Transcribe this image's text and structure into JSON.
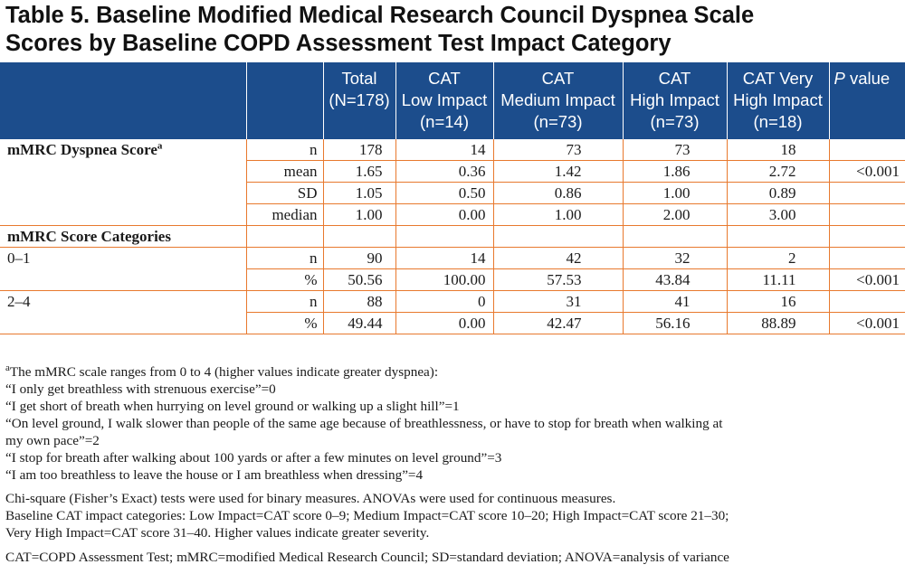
{
  "title": {
    "line1": "Table 5. Baseline Modified Medical Research Council Dyspnea Scale",
    "line2": "Scores by Baseline COPD Assessment Test Impact Category"
  },
  "header": {
    "columns": [
      {
        "l1": "Total",
        "l2": "(N=178)",
        "l3": ""
      },
      {
        "l1": "CAT",
        "l2": "Low Impact",
        "l3": "(n=14)"
      },
      {
        "l1": "CAT",
        "l2": "Medium Impact",
        "l3": "(n=73)"
      },
      {
        "l1": "CAT",
        "l2": "High Impact",
        "l3": "(n=73)"
      },
      {
        "l1": "CAT Very",
        "l2": "High Impact",
        "l3": "(n=18)"
      }
    ],
    "pvalue_italic": "P",
    "pvalue_rest": " value"
  },
  "sections": {
    "dyspnea": {
      "label": "mMRC Dyspnea Score",
      "sup": "a"
    },
    "categories": {
      "label": "mMRC Score Categories"
    }
  },
  "rows": {
    "d_n": {
      "stat": "n",
      "v": [
        "178",
        "14",
        "73",
        "73",
        "18"
      ],
      "p": ""
    },
    "d_mean": {
      "stat": "mean",
      "v": [
        "1.65",
        "0.36",
        "1.42",
        "1.86",
        "2.72"
      ],
      "p": "<0.001"
    },
    "d_sd": {
      "stat": "SD",
      "v": [
        "1.05",
        "0.50",
        "0.86",
        "1.00",
        "0.89"
      ],
      "p": ""
    },
    "d_median": {
      "stat": "median",
      "v": [
        "1.00",
        "0.00",
        "1.00",
        "2.00",
        "3.00"
      ],
      "p": ""
    },
    "g1_label": "0–1",
    "g1_n": {
      "stat": "n",
      "v": [
        "90",
        "14",
        "42",
        "32",
        "2"
      ],
      "p": ""
    },
    "g1_pct": {
      "stat": "%",
      "v": [
        "50.56",
        "100.00",
        "57.53",
        "43.84",
        "11.11"
      ],
      "p": "<0.001"
    },
    "g2_label": "2–4",
    "g2_n": {
      "stat": "n",
      "v": [
        "88",
        "0",
        "31",
        "41",
        "16"
      ],
      "p": ""
    },
    "g2_pct": {
      "stat": "%",
      "v": [
        "49.44",
        "0.00",
        "42.47",
        "56.16",
        "88.89"
      ],
      "p": "<0.001"
    }
  },
  "footnotes": {
    "a_sup": "a",
    "a_intro": "The mMRC scale ranges from 0 to 4 (higher values indicate greater dyspnea):",
    "lines": [
      "“I only get breathless with strenuous exercise”=0",
      "“I get short of breath when hurrying on level ground or walking up a slight hill”=1",
      "“On level ground, I walk slower than people of the same age because of breathlessness, or have to stop for breath when walking at",
      "my own pace”=2",
      "“I stop for breath after walking about 100 yards or after a few minutes on level ground”=3",
      "“I am too breathless to leave the house or I am breathless when dressing”=4"
    ],
    "stats": [
      "Chi-square (Fisher’s Exact) tests were used for binary measures. ANOVAs were used for continuous measures.",
      "Baseline CAT impact categories: Low Impact=CAT score 0–9; Medium Impact=CAT score 10–20; High Impact=CAT score 21–30;",
      "Very High Impact=CAT score 31–40. Higher values indicate greater severity."
    ],
    "abbrev": "CAT=COPD Assessment Test; mMRC=modified Medical Research Council; SD=standard deviation; ANOVA=analysis of variance"
  }
}
